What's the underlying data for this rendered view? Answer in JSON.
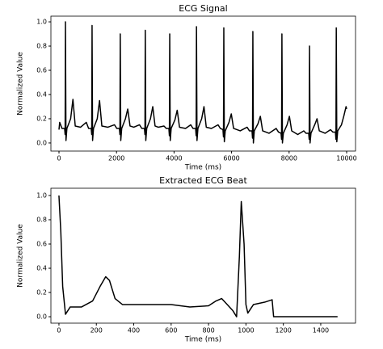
{
  "chart_data": [
    {
      "type": "line",
      "title": "ECG Signal",
      "xlabel": "Time (ms)",
      "ylabel": "Normalized Value",
      "x": [
        0,
        25,
        105,
        195,
        213,
        225,
        243,
        275,
        405,
        485,
        565,
        750,
        950,
        1030,
        1120,
        1138,
        1150,
        1168,
        1200,
        1330,
        1410,
        1490,
        1700,
        1930,
        2010,
        2100,
        2118,
        2130,
        2148,
        2180,
        2310,
        2390,
        2470,
        2600,
        2800,
        2880,
        2970,
        2988,
        3000,
        3018,
        3050,
        3180,
        3260,
        3340,
        3450,
        3650,
        3730,
        3820,
        3838,
        3850,
        3868,
        3900,
        4030,
        4110,
        4190,
        4400,
        4580,
        4660,
        4750,
        4768,
        4780,
        4798,
        4830,
        4960,
        5040,
        5120,
        5300,
        5530,
        5610,
        5700,
        5718,
        5730,
        5748,
        5780,
        5910,
        5990,
        6070,
        6300,
        6540,
        6620,
        6710,
        6728,
        6740,
        6758,
        6790,
        6920,
        7000,
        7080,
        7300,
        7550,
        7630,
        7720,
        7738,
        7750,
        7768,
        7800,
        7930,
        8010,
        8090,
        8300,
        8510,
        8590,
        8680,
        8698,
        8710,
        8728,
        8760,
        8890,
        8970,
        9050,
        9250,
        9440,
        9520,
        9610,
        9628,
        9640,
        9658,
        9690,
        9820,
        9900,
        9980,
        10000
      ],
      "series": [
        {
          "name": "ECG",
          "color": "#000000",
          "values": [
            0.11,
            0.17,
            0.12,
            0.12,
            0.07,
            1.0,
            0.02,
            0.12,
            0.2,
            0.36,
            0.14,
            0.13,
            0.17,
            0.12,
            0.12,
            0.07,
            0.97,
            0.02,
            0.12,
            0.2,
            0.35,
            0.14,
            0.13,
            0.15,
            0.12,
            0.12,
            0.07,
            0.9,
            0.02,
            0.12,
            0.2,
            0.28,
            0.14,
            0.13,
            0.15,
            0.12,
            0.12,
            0.07,
            0.93,
            0.02,
            0.12,
            0.2,
            0.3,
            0.14,
            0.13,
            0.14,
            0.12,
            0.12,
            0.06,
            0.9,
            0.02,
            0.12,
            0.19,
            0.27,
            0.13,
            0.12,
            0.15,
            0.12,
            0.12,
            0.06,
            0.96,
            0.02,
            0.12,
            0.2,
            0.3,
            0.13,
            0.12,
            0.15,
            0.12,
            0.11,
            0.05,
            0.95,
            0.01,
            0.1,
            0.17,
            0.24,
            0.12,
            0.1,
            0.13,
            0.1,
            0.1,
            0.04,
            0.92,
            0.0,
            0.1,
            0.16,
            0.22,
            0.1,
            0.08,
            0.12,
            0.09,
            0.08,
            0.03,
            0.9,
            0.0,
            0.08,
            0.15,
            0.22,
            0.1,
            0.07,
            0.1,
            0.08,
            0.08,
            0.03,
            0.8,
            0.0,
            0.08,
            0.15,
            0.2,
            0.1,
            0.08,
            0.11,
            0.09,
            0.09,
            0.03,
            0.95,
            0.01,
            0.1,
            0.15,
            0.22,
            0.3,
            0.28
          ]
        }
      ],
      "xlim": [
        -281,
        10309
      ],
      "ylim": [
        -0.067,
        1.047
      ],
      "xticks": [
        0,
        2000,
        4000,
        6000,
        8000,
        10000
      ],
      "yticks": [
        {
          "value": 0,
          "label": "0.0"
        },
        {
          "value": 0.2,
          "label": "0.2"
        },
        {
          "value": 0.4,
          "label": "0.4"
        },
        {
          "value": 0.6,
          "label": "0.6"
        },
        {
          "value": 0.8,
          "label": "0.8"
        },
        {
          "value": 1,
          "label": "1.0"
        }
      ]
    },
    {
      "type": "line",
      "title": "Extracted ECG Beat",
      "xlabel": "Time (ms)",
      "ylabel": "Normalized Value",
      "x": [
        0,
        10,
        20,
        35,
        60,
        120,
        180,
        220,
        250,
        270,
        300,
        340,
        400,
        500,
        600,
        700,
        800,
        840,
        870,
        900,
        930,
        950,
        965,
        975,
        990,
        1000,
        1010,
        1040,
        1100,
        1140,
        1148,
        1200,
        1490
      ],
      "series": [
        {
          "name": "Beat",
          "color": "#000000",
          "values": [
            1.0,
            0.7,
            0.25,
            0.02,
            0.08,
            0.08,
            0.13,
            0.25,
            0.33,
            0.3,
            0.15,
            0.1,
            0.1,
            0.1,
            0.1,
            0.08,
            0.09,
            0.13,
            0.15,
            0.1,
            0.05,
            0.0,
            0.5,
            0.95,
            0.6,
            0.1,
            0.03,
            0.1,
            0.12,
            0.14,
            0.0,
            0.0,
            0.0
          ]
        }
      ],
      "xlim": [
        -43,
        1586
      ],
      "ylim": [
        -0.053,
        1.06
      ],
      "xticks": [
        0,
        200,
        400,
        600,
        800,
        1000,
        1200,
        1400
      ],
      "yticks": [
        {
          "value": 0,
          "label": "0.0"
        },
        {
          "value": 0.2,
          "label": "0.2"
        },
        {
          "value": 0.4,
          "label": "0.4"
        },
        {
          "value": 0.6,
          "label": "0.6"
        },
        {
          "value": 0.8,
          "label": "0.8"
        },
        {
          "value": 1,
          "label": "1.0"
        }
      ]
    }
  ]
}
